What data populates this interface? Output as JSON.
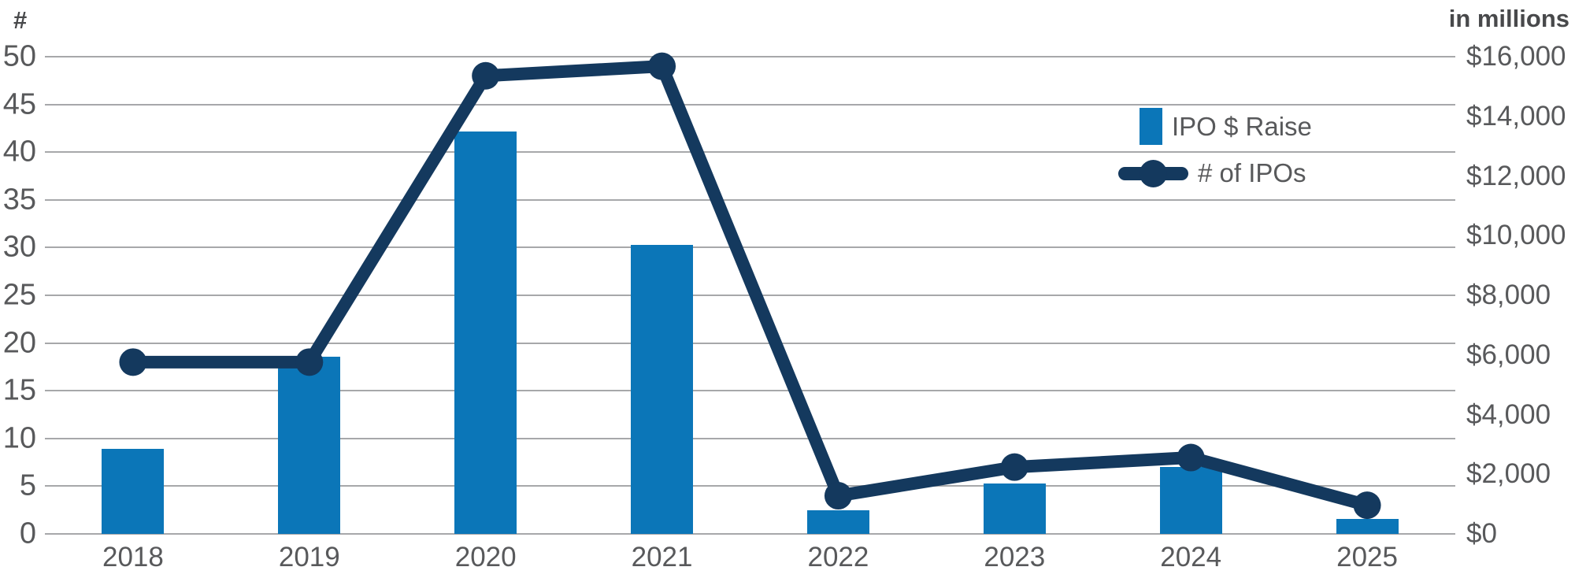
{
  "colors": {
    "bar": "#0b76b8",
    "line": "#14395e",
    "grid": "#a7a8aa",
    "tick_text": "#58595b",
    "axis_title_text": "#48494b"
  },
  "chart_data": {
    "type": "bar",
    "subtype": "combo-bar-line-dual-axis",
    "categories": [
      "2018",
      "2019",
      "2020",
      "2021",
      "2022",
      "2023",
      "2024",
      "2025"
    ],
    "series": [
      {
        "name": "IPO $ Raise",
        "type": "bar",
        "axis": "right",
        "values": [
          2850,
          5950,
          13500,
          9700,
          800,
          1700,
          2250,
          500
        ]
      },
      {
        "name": "# of IPOs",
        "type": "line",
        "axis": "left",
        "values": [
          18,
          18,
          48,
          49,
          4,
          7,
          8,
          3
        ]
      }
    ],
    "left_axis": {
      "title": "#",
      "min": 0,
      "max": 50,
      "step": 5,
      "ticks": [
        0,
        5,
        10,
        15,
        20,
        25,
        30,
        35,
        40,
        45,
        50
      ],
      "tick_labels": [
        "0",
        "5",
        "10",
        "15",
        "20",
        "25",
        "30",
        "35",
        "40",
        "45",
        "50"
      ]
    },
    "right_axis": {
      "title": "in millions",
      "min": 0,
      "max": 16000,
      "step": 2000,
      "ticks": [
        0,
        2000,
        4000,
        6000,
        8000,
        10000,
        12000,
        14000,
        16000
      ],
      "tick_labels": [
        "$0",
        "$2,000",
        "$4,000",
        "$6,000",
        "$8,000",
        "$10,000",
        "$12,000",
        "$14,000",
        "$16,000"
      ]
    },
    "grid": "horizontal gridlines aligned to left axis ticks",
    "legend_position": "top-right inside plot"
  }
}
